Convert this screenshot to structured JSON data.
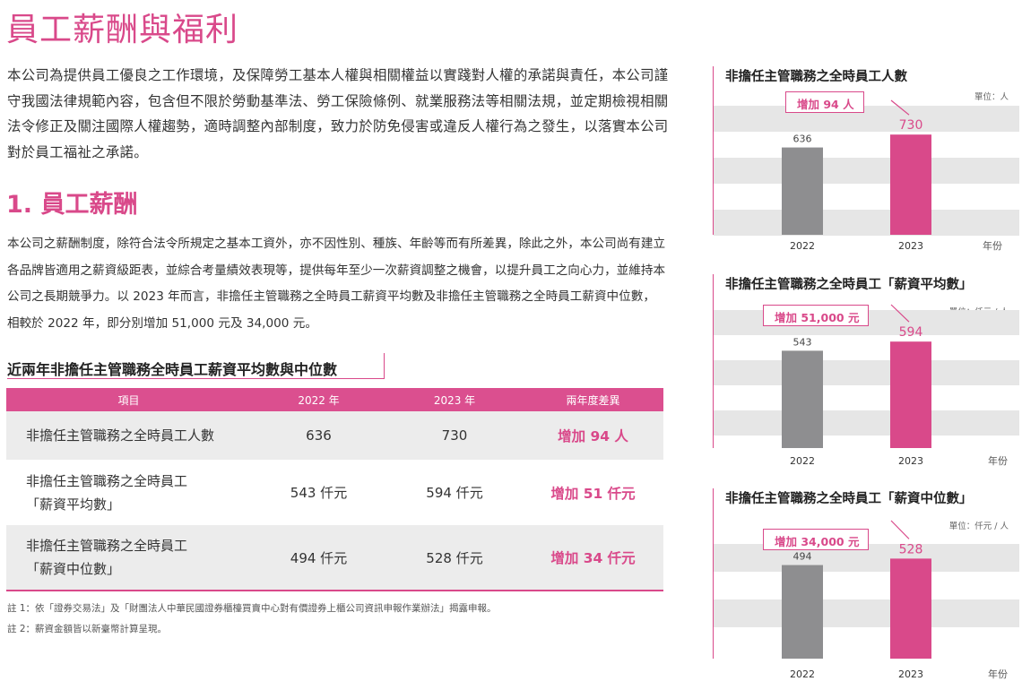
{
  "page": {
    "title": "員工薪酬與福利",
    "intro": "本公司為提供員工優良之工作環境，及保障勞工基本人權與相關權益以實踐對人權的承諾與責任，本公司謹守我國法律規範內容，包含但不限於勞動基準法、勞工保險條例、就業服務法等相關法規，並定期檢視相關法令修正及關注國際人權趨勢，適時調整內部制度，致力於防免侵害或違反人權行為之發生，以落實本公司對於員工福祉之承諾。",
    "section_heading": "1. 員工薪酬",
    "body": "本公司之薪酬制度，除符合法令所規定之基本工資外，亦不因性別、種族、年齡等而有所差異，除此之外，本公司尚有建立各品牌皆適用之薪資級距表，並綜合考量績效表現等，提供每年至少一次薪資調整之機會，以提升員工之向心力，並維持本公司之長期競爭力。以 2023 年而言，非擔任主管職務之全時員工薪資平均數及非擔任主管職務之全時員工薪資中位數，相較於 2022 年，即分別增加 51,000 元及 34,000 元。"
  },
  "table": {
    "title": "近兩年非擔任主管職務全時員工薪資平均數與中位數",
    "headers": [
      "項目",
      "2022 年",
      "2023 年",
      "兩年度差異"
    ],
    "rows": [
      {
        "item_line1": "非擔任主管職務之全時員工人數",
        "item_line2": "",
        "y2022": "636",
        "y2023": "730",
        "diff": "增加 94 人"
      },
      {
        "item_line1": "非擔任主管職務之全時員工",
        "item_line2": "「薪資平均數」",
        "y2022": "543 仟元",
        "y2023": "594 仟元",
        "diff": "增加 51 仟元"
      },
      {
        "item_line1": "非擔任主管職務之全時員工",
        "item_line2": "「薪資中位數」",
        "y2022": "494 仟元",
        "y2023": "528 仟元",
        "diff": "增加 34 仟元"
      }
    ]
  },
  "notes": [
    "註 1：依「證券交易法」及「財團法人中華民國證券櫃檯買賣中心對有價證券上櫃公司資訊申報作業辦法」揭露申報。",
    "註 2：薪資金額皆以新臺幣計算呈現。"
  ],
  "colors": {
    "accent": "#d9498a",
    "bar_2022": "#8e8e90",
    "bar_2023": "#d9498a",
    "band": "#e6e6e6"
  },
  "chart_data": [
    {
      "type": "bar",
      "title": "非擔任主管職務之全時員工人數",
      "unit": "單位：人",
      "categories": [
        "2022",
        "2023"
      ],
      "values": [
        636,
        730
      ],
      "value_labels": [
        "636",
        "730"
      ],
      "xlabel": "年份",
      "callout": "增加 94 人",
      "ylim": [
        0,
        940
      ],
      "grid": "horizontal bands"
    },
    {
      "type": "bar",
      "title": "非擔任主管職務之全時員工「薪資平均數」",
      "unit": "單位：仟元 / 人",
      "categories": [
        "2022",
        "2023"
      ],
      "values": [
        543,
        594
      ],
      "value_labels": [
        "543",
        "594"
      ],
      "xlabel": "年份",
      "callout": "增加 51,000 元",
      "ylim": [
        0,
        770
      ],
      "grid": "horizontal bands"
    },
    {
      "type": "bar",
      "title": "非擔任主管職務之全時員工「薪資中位數」",
      "unit": "單位：仟元 / 人",
      "categories": [
        "2022",
        "2023"
      ],
      "values": [
        494,
        528
      ],
      "value_labels": [
        "494",
        "528"
      ],
      "xlabel": "年份",
      "callout": "增加 34,000 元",
      "ylim": [
        0,
        700
      ],
      "grid": "horizontal bands"
    }
  ]
}
